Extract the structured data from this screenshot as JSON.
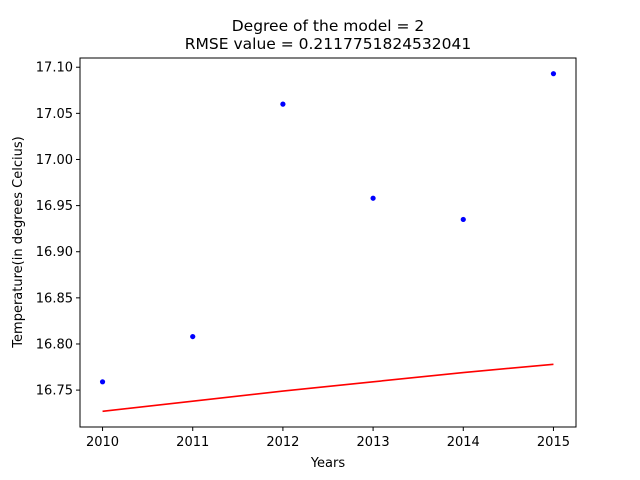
{
  "chart_data": {
    "type": "scatter",
    "title": "Degree of the model = 2",
    "subtitle": "RMSE value = 0.2117751824532041",
    "xlabel": "Years",
    "ylabel": "Temperature(in degrees Celcius)",
    "xlim": [
      2009.75,
      2015.25
    ],
    "ylim": [
      16.71,
      17.11
    ],
    "x_ticks": [
      "2010",
      "2011",
      "2012",
      "2013",
      "2014",
      "2015"
    ],
    "y_ticks": [
      "16.75",
      "16.80",
      "16.85",
      "16.90",
      "16.95",
      "17.00",
      "17.05",
      "17.10"
    ],
    "grid": false,
    "series": [
      {
        "kind": "scatter",
        "color": "#0000ff",
        "x": [
          2010,
          2011,
          2012,
          2013,
          2014,
          2015
        ],
        "y": [
          16.759,
          16.808,
          17.06,
          16.958,
          16.935,
          17.093
        ]
      },
      {
        "kind": "line",
        "color": "#ff0000",
        "x": [
          2010,
          2011,
          2012,
          2013,
          2014,
          2015
        ],
        "y": [
          16.727,
          16.738,
          16.749,
          16.759,
          16.769,
          16.778
        ]
      }
    ]
  }
}
